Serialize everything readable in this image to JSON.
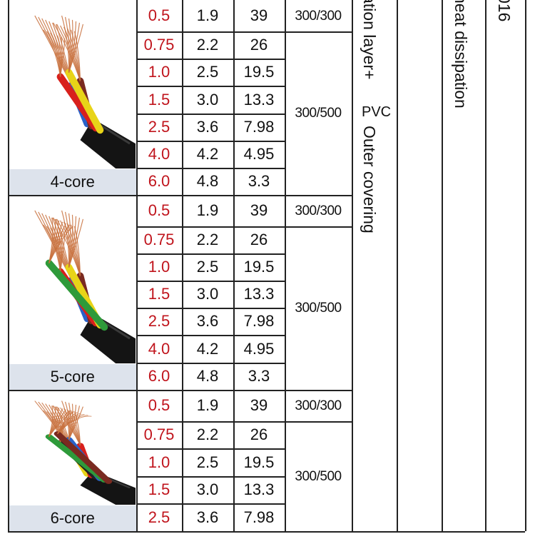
{
  "colors": {
    "size_text": "#c0141c",
    "label_bg": "#dde3ec",
    "grid": "#222222"
  },
  "groups": [
    {
      "label": "4-core",
      "rows": [
        {
          "size": "0.5",
          "diameter": "1.9",
          "resistance": "39"
        },
        {
          "size": "0.75",
          "diameter": "2.2",
          "resistance": "26"
        },
        {
          "size": "1.0",
          "diameter": "2.5",
          "resistance": "19.5"
        },
        {
          "size": "1.5",
          "diameter": "3.0",
          "resistance": "13.3"
        },
        {
          "size": "2.5",
          "diameter": "3.6",
          "resistance": "7.98"
        },
        {
          "size": "4.0",
          "diameter": "4.2",
          "resistance": "4.95"
        },
        {
          "size": "6.0",
          "diameter": "4.8",
          "resistance": "3.3"
        }
      ],
      "voltages": [
        "300/300",
        "300/500"
      ]
    },
    {
      "label": "5-core",
      "rows": [
        {
          "size": "0.5",
          "diameter": "1.9",
          "resistance": "39"
        },
        {
          "size": "0.75",
          "diameter": "2.2",
          "resistance": "26"
        },
        {
          "size": "1.0",
          "diameter": "2.5",
          "resistance": "19.5"
        },
        {
          "size": "1.5",
          "diameter": "3.0",
          "resistance": "13.3"
        },
        {
          "size": "2.5",
          "diameter": "3.6",
          "resistance": "7.98"
        },
        {
          "size": "4.0",
          "diameter": "4.2",
          "resistance": "4.95"
        },
        {
          "size": "6.0",
          "diameter": "4.8",
          "resistance": "3.3"
        }
      ],
      "voltages": [
        "300/300",
        "300/500"
      ]
    },
    {
      "label": "6-core",
      "rows": [
        {
          "size": "0.5",
          "diameter": "1.9",
          "resistance": "39"
        },
        {
          "size": "0.75",
          "diameter": "2.2",
          "resistance": "26"
        },
        {
          "size": "1.0",
          "diameter": "2.5",
          "resistance": "19.5"
        },
        {
          "size": "1.5",
          "diameter": "3.0",
          "resistance": "13.3"
        },
        {
          "size": "2.5",
          "diameter": "3.6",
          "resistance": "7.98"
        }
      ],
      "voltages": [
        "300/300",
        "300/500"
      ]
    }
  ],
  "vertical_texts": {
    "col1_a": "ation layer+",
    "col1_b": "PVC",
    "col1_c": "Outer covering",
    "col3": "heat dissipation",
    "col5": "016"
  }
}
